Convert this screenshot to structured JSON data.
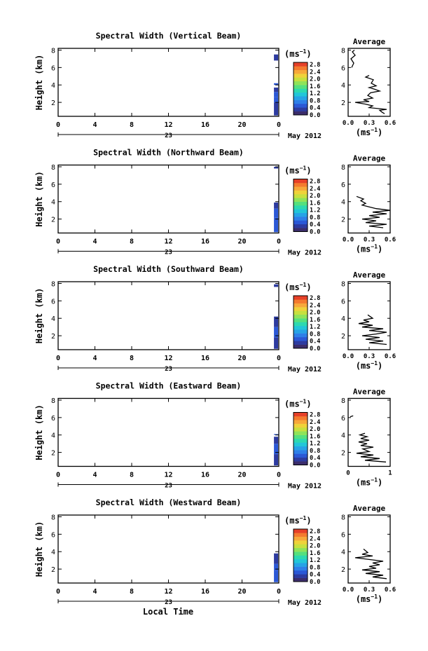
{
  "figure": {
    "date_label": "May 2012",
    "day_label": "23",
    "xlabel": "Local Time",
    "units_label": "(ms",
    "units_exp": "−1",
    "units_close": ")",
    "avg_title": "Average"
  },
  "colorscale": [
    "#3b2d6b",
    "#2d3ba0",
    "#2b58d6",
    "#2e7fe8",
    "#26a3e6",
    "#22c6d8",
    "#2dd9b0",
    "#55e07e",
    "#8fe35a",
    "#c7e03f",
    "#efd23a",
    "#f7a83a",
    "#f47a2e",
    "#e64028"
  ],
  "chart_data": [
    {
      "type": "heatmap",
      "title": "Spectral Width (Vertical Beam)",
      "ylabel": "Height (km)",
      "x_ticks": [
        "0",
        "4",
        "8",
        "12",
        "16",
        "20",
        "0"
      ],
      "xlim": [
        0,
        24
      ],
      "ylim": [
        0.4,
        8.2
      ],
      "y_ticks": [
        2,
        4,
        6,
        8
      ],
      "colorbar_ticks": [
        "2.8",
        "2.4",
        "2.0",
        "1.6",
        "1.2",
        "0.8",
        "0.4",
        "0.0"
      ],
      "colorbar_range": [
        0,
        2.8
      ],
      "cells": [
        {
          "x": 23.7,
          "y0": 0.5,
          "y1": 2.0,
          "v": 0.35
        },
        {
          "x": 23.7,
          "y0": 2.0,
          "y1": 2.6,
          "v": 0.5
        },
        {
          "x": 23.7,
          "y0": 2.6,
          "y1": 3.2,
          "v": 0.4
        },
        {
          "x": 23.7,
          "y0": 3.2,
          "y1": 3.7,
          "v": 0.3
        },
        {
          "x": 23.7,
          "y0": 4.0,
          "y1": 4.2,
          "v": 0.45
        },
        {
          "x": 23.7,
          "y0": 6.8,
          "y1": 7.5,
          "v": 0.35
        }
      ],
      "average": {
        "xlim": [
          0,
          0.6
        ],
        "x_ticks": [
          "0.0",
          "0.3",
          "0.6"
        ],
        "xlabel": "(ms",
        "profile": [
          [
            0.52,
            0.7
          ],
          [
            0.48,
            0.9
          ],
          [
            0.45,
            1.1
          ],
          [
            0.55,
            1.2
          ],
          [
            0.3,
            1.4
          ],
          [
            0.35,
            1.6
          ],
          [
            0.25,
            1.8
          ],
          [
            0.1,
            2.0
          ],
          [
            0.3,
            2.1
          ],
          [
            0.22,
            2.3
          ],
          [
            0.35,
            2.5
          ],
          [
            0.28,
            2.8
          ],
          [
            0.32,
            3.1
          ],
          [
            0.45,
            3.3
          ],
          [
            0.38,
            3.5
          ],
          [
            0.3,
            3.7
          ],
          [
            0.4,
            3.9
          ],
          [
            0.33,
            4.2
          ],
          [
            0.36,
            4.6
          ],
          [
            0.25,
            4.9
          ],
          [
            0.3,
            5.1
          ]
        ],
        "profile2": [
          [
            0.05,
            6.0
          ],
          [
            0.08,
            6.5
          ],
          [
            0.04,
            7.0
          ],
          [
            0.1,
            7.4
          ],
          [
            0.06,
            7.8
          ],
          [
            0.09,
            8.0
          ]
        ]
      }
    },
    {
      "type": "heatmap",
      "title": "Spectral Width (Northward Beam)",
      "ylabel": "Height (km)",
      "x_ticks": [
        "0",
        "4",
        "8",
        "12",
        "16",
        "20",
        "0"
      ],
      "xlim": [
        0,
        24
      ],
      "ylim": [
        0.4,
        8.2
      ],
      "y_ticks": [
        2,
        4,
        6,
        8
      ],
      "colorbar_ticks": [
        "2.8",
        "2.4",
        "2.0",
        "1.6",
        "1.2",
        "0.8",
        "0.4",
        "0.0"
      ],
      "colorbar_range": [
        0,
        2.8
      ],
      "cells": [
        {
          "x": 23.7,
          "y0": 0.5,
          "y1": 2.2,
          "v": 0.4
        },
        {
          "x": 23.7,
          "y0": 2.2,
          "y1": 3.2,
          "v": 0.5
        },
        {
          "x": 23.7,
          "y0": 3.2,
          "y1": 3.9,
          "v": 0.35
        },
        {
          "x": 23.7,
          "y0": 7.8,
          "y1": 8.0,
          "v": 0.3
        }
      ],
      "average": {
        "xlim": [
          0,
          0.6
        ],
        "x_ticks": [
          "0.0",
          "0.3",
          "0.6"
        ],
        "xlabel": "(ms",
        "profile": [
          [
            0.5,
            1.0
          ],
          [
            0.3,
            1.2
          ],
          [
            0.55,
            1.4
          ],
          [
            0.25,
            1.6
          ],
          [
            0.4,
            1.8
          ],
          [
            0.2,
            2.0
          ],
          [
            0.45,
            2.2
          ],
          [
            0.3,
            2.4
          ],
          [
            0.55,
            2.6
          ],
          [
            0.35,
            2.8
          ],
          [
            0.6,
            3.0
          ],
          [
            0.4,
            3.2
          ],
          [
            0.3,
            3.4
          ],
          [
            0.2,
            3.6
          ],
          [
            0.25,
            3.8
          ],
          [
            0.18,
            4.1
          ],
          [
            0.22,
            4.3
          ],
          [
            0.12,
            4.6
          ]
        ]
      }
    },
    {
      "type": "heatmap",
      "title": "Spectral Width (Southward Beam)",
      "ylabel": "Height (km)",
      "x_ticks": [
        "0",
        "4",
        "8",
        "12",
        "16",
        "20",
        "0"
      ],
      "xlim": [
        0,
        24
      ],
      "ylim": [
        0.4,
        8.2
      ],
      "y_ticks": [
        2,
        4,
        6,
        8
      ],
      "colorbar_ticks": [
        "2.8",
        "2.4",
        "2.0",
        "1.6",
        "1.2",
        "0.8",
        "0.4",
        "0.0"
      ],
      "colorbar_range": [
        0,
        2.8
      ],
      "cells": [
        {
          "x": 23.7,
          "y0": 0.5,
          "y1": 1.8,
          "v": 0.35
        },
        {
          "x": 23.7,
          "y0": 1.8,
          "y1": 3.0,
          "v": 0.5
        },
        {
          "x": 23.7,
          "y0": 3.0,
          "y1": 4.2,
          "v": 0.35
        },
        {
          "x": 23.7,
          "y0": 7.6,
          "y1": 7.9,
          "v": 0.3
        }
      ],
      "average": {
        "xlim": [
          0,
          0.6
        ],
        "x_ticks": [
          "0.0",
          "0.3",
          "0.6"
        ],
        "xlabel": "(ms",
        "profile": [
          [
            0.55,
            1.0
          ],
          [
            0.3,
            1.2
          ],
          [
            0.5,
            1.4
          ],
          [
            0.25,
            1.6
          ],
          [
            0.45,
            1.8
          ],
          [
            0.2,
            2.0
          ],
          [
            0.4,
            2.2
          ],
          [
            0.55,
            2.4
          ],
          [
            0.3,
            2.6
          ],
          [
            0.5,
            2.8
          ],
          [
            0.2,
            3.0
          ],
          [
            0.35,
            3.2
          ],
          [
            0.15,
            3.4
          ],
          [
            0.3,
            3.6
          ],
          [
            0.22,
            3.8
          ],
          [
            0.35,
            4.0
          ],
          [
            0.28,
            4.4
          ]
        ]
      }
    },
    {
      "type": "heatmap",
      "title": "Spectral Width (Eastward Beam)",
      "ylabel": "Height (km)",
      "x_ticks": [
        "0",
        "4",
        "8",
        "12",
        "16",
        "20",
        "0"
      ],
      "xlim": [
        0,
        24
      ],
      "ylim": [
        0.4,
        8.2
      ],
      "y_ticks": [
        2,
        4,
        6,
        8
      ],
      "colorbar_ticks": [
        "2.8",
        "2.4",
        "2.0",
        "1.6",
        "1.2",
        "0.8",
        "0.4",
        "0.0"
      ],
      "colorbar_range": [
        0,
        2.8
      ],
      "cells": [
        {
          "x": 23.7,
          "y0": 0.5,
          "y1": 1.8,
          "v": 0.35
        },
        {
          "x": 23.7,
          "y0": 1.8,
          "y1": 3.0,
          "v": 0.5
        },
        {
          "x": 23.7,
          "y0": 3.0,
          "y1": 3.8,
          "v": 0.35
        },
        {
          "x": 23.7,
          "y0": 4.0,
          "y1": 4.1,
          "v": 0.4
        }
      ],
      "average": {
        "xlim": [
          0,
          1.0
        ],
        "x_ticks": [
          "0",
          "",
          "1"
        ],
        "xlabel": "(ms",
        "profile": [
          [
            0.9,
            0.9
          ],
          [
            0.4,
            1.1
          ],
          [
            0.75,
            1.3
          ],
          [
            0.3,
            1.5
          ],
          [
            0.6,
            1.7
          ],
          [
            0.2,
            1.9
          ],
          [
            0.5,
            2.1
          ],
          [
            0.35,
            2.4
          ],
          [
            0.6,
            2.6
          ],
          [
            0.3,
            2.8
          ],
          [
            0.45,
            3.0
          ],
          [
            0.25,
            3.2
          ],
          [
            0.5,
            3.4
          ],
          [
            0.3,
            3.6
          ],
          [
            0.45,
            3.8
          ],
          [
            0.28,
            4.0
          ],
          [
            0.4,
            4.2
          ]
        ],
        "profile2": [
          [
            0.05,
            6.1
          ],
          [
            0.12,
            6.2
          ]
        ]
      }
    },
    {
      "type": "heatmap",
      "title": "Spectral Width (Westward Beam)",
      "ylabel": "Height (km)",
      "x_ticks": [
        "0",
        "4",
        "8",
        "12",
        "16",
        "20",
        "0"
      ],
      "xlim": [
        0,
        24
      ],
      "ylim": [
        0.4,
        8.2
      ],
      "y_ticks": [
        2,
        4,
        6,
        8
      ],
      "colorbar_ticks": [
        "2.8",
        "2.4",
        "2.0",
        "1.6",
        "1.2",
        "0.8",
        "0.4",
        "0.0"
      ],
      "colorbar_range": [
        0,
        2.8
      ],
      "cells": [
        {
          "x": 23.7,
          "y0": 0.5,
          "y1": 1.8,
          "v": 0.4
        },
        {
          "x": 23.7,
          "y0": 1.8,
          "y1": 2.6,
          "v": 0.5
        },
        {
          "x": 23.7,
          "y0": 2.6,
          "y1": 3.8,
          "v": 0.35
        }
      ],
      "average": {
        "xlim": [
          0,
          0.6
        ],
        "x_ticks": [
          "0.0",
          "0.3",
          "0.6"
        ],
        "xlabel": "(ms",
        "profile": [
          [
            0.55,
            0.9
          ],
          [
            0.35,
            1.1
          ],
          [
            0.5,
            1.3
          ],
          [
            0.25,
            1.5
          ],
          [
            0.45,
            1.7
          ],
          [
            0.2,
            1.9
          ],
          [
            0.4,
            2.1
          ],
          [
            0.3,
            2.3
          ],
          [
            0.45,
            2.5
          ],
          [
            0.35,
            2.7
          ],
          [
            0.5,
            2.9
          ],
          [
            0.3,
            3.1
          ],
          [
            0.1,
            3.3
          ],
          [
            0.35,
            3.5
          ],
          [
            0.2,
            3.7
          ],
          [
            0.28,
            3.9
          ],
          [
            0.22,
            4.3
          ]
        ]
      }
    }
  ]
}
